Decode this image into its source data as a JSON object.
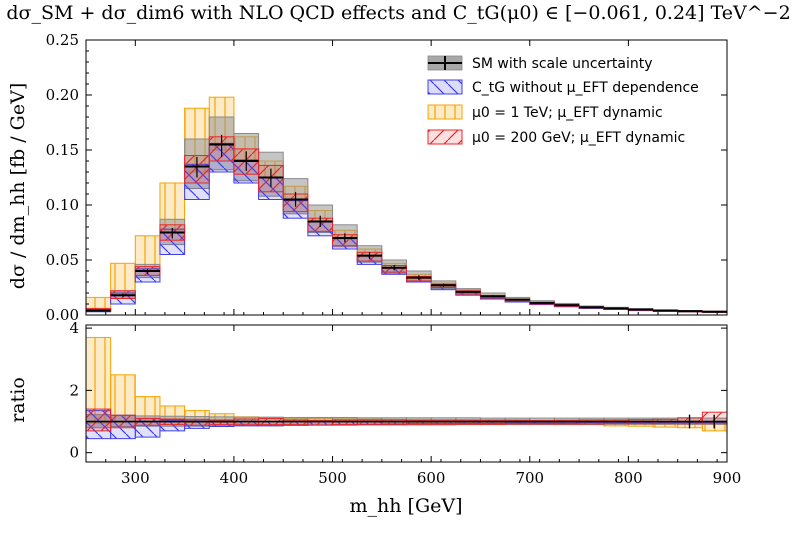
{
  "chart_data": {
    "type": "histogram",
    "title": "dσ_SM + dσ_dim6 with NLO QCD effects and C_tG(μ0) ∈ [−0.061, 0.24] TeV^−2",
    "xlabel": "m_hh [GeV]",
    "ylabel_main": "dσ / dm_hh   [fb / GeV]",
    "ylabel_ratio": "ratio",
    "xlim": [
      250,
      900
    ],
    "ylim_main": [
      0.0,
      0.25
    ],
    "ylim_ratio": [
      -0.3,
      4.1
    ],
    "xticks": [
      300,
      400,
      500,
      600,
      700,
      800,
      900
    ],
    "yticks_main": [
      "0.00",
      "0.05",
      "0.10",
      "0.15",
      "0.20",
      "0.25"
    ],
    "yticks_ratio": [
      "0",
      "2",
      "4"
    ],
    "bin_edges": [
      250,
      275,
      300,
      325,
      350,
      375,
      400,
      425,
      450,
      475,
      500,
      525,
      550,
      575,
      600,
      625,
      650,
      675,
      700,
      725,
      750,
      775,
      800,
      825,
      850,
      875,
      900
    ],
    "series": [
      {
        "name": "SM with scale uncertainty",
        "central": [
          0.004,
          0.018,
          0.04,
          0.075,
          0.135,
          0.155,
          0.14,
          0.125,
          0.105,
          0.085,
          0.07,
          0.054,
          0.043,
          0.034,
          0.027,
          0.021,
          0.017,
          0.014,
          0.011,
          0.009,
          0.007,
          0.006,
          0.005,
          0.004,
          0.0035,
          0.003
        ],
        "low": [
          0.003,
          0.015,
          0.034,
          0.064,
          0.115,
          0.132,
          0.122,
          0.108,
          0.092,
          0.075,
          0.062,
          0.048,
          0.038,
          0.03,
          0.024,
          0.019,
          0.015,
          0.012,
          0.0095,
          0.008,
          0.006,
          0.005,
          0.0043,
          0.0035,
          0.003,
          0.0026
        ],
        "high": [
          0.005,
          0.022,
          0.046,
          0.087,
          0.16,
          0.18,
          0.165,
          0.148,
          0.124,
          0.1,
          0.082,
          0.063,
          0.05,
          0.04,
          0.031,
          0.024,
          0.02,
          0.016,
          0.013,
          0.0105,
          0.0082,
          0.007,
          0.0058,
          0.0047,
          0.004,
          0.0035
        ]
      },
      {
        "name": "C_tG without μ_EFT dependence",
        "low": [
          0.003,
          0.01,
          0.03,
          0.055,
          0.105,
          0.13,
          0.12,
          0.105,
          0.088,
          0.072,
          0.06,
          0.046,
          0.037,
          0.03,
          0.023,
          0.018,
          0.0145,
          0.0118,
          0.0095,
          0.0075,
          0.006,
          0.005,
          0.004,
          0.0034,
          0.0029,
          0.0025
        ],
        "high": [
          0.005,
          0.02,
          0.042,
          0.078,
          0.137,
          0.156,
          0.141,
          0.125,
          0.104,
          0.085,
          0.07,
          0.054,
          0.043,
          0.034,
          0.027,
          0.021,
          0.017,
          0.014,
          0.011,
          0.009,
          0.007,
          0.006,
          0.005,
          0.004,
          0.0035,
          0.003
        ]
      },
      {
        "name": "μ0 = 1 TeV; μ_EFT dynamic",
        "low": [
          0.004,
          0.018,
          0.04,
          0.075,
          0.13,
          0.15,
          0.14,
          0.125,
          0.105,
          0.085,
          0.069,
          0.053,
          0.042,
          0.033,
          0.026,
          0.02,
          0.016,
          0.013,
          0.0105,
          0.008,
          0.0065,
          0.005,
          0.0042,
          0.0034,
          0.0028,
          0.0022
        ],
        "high": [
          0.016,
          0.047,
          0.072,
          0.12,
          0.188,
          0.198,
          0.162,
          0.14,
          0.117,
          0.095,
          0.077,
          0.06,
          0.047,
          0.037,
          0.029,
          0.023,
          0.018,
          0.0145,
          0.0115,
          0.0092,
          0.0072,
          0.006,
          0.0049,
          0.004,
          0.0033,
          0.0028
        ]
      },
      {
        "name": "μ0 = 200 GeV; μ_EFT dynamic",
        "low": [
          0.004,
          0.015,
          0.036,
          0.068,
          0.12,
          0.14,
          0.128,
          0.112,
          0.094,
          0.076,
          0.063,
          0.049,
          0.039,
          0.031,
          0.025,
          0.019,
          0.0155,
          0.0125,
          0.01,
          0.008,
          0.0064,
          0.0052,
          0.0043,
          0.0036,
          0.003,
          0.0026
        ],
        "high": [
          0.006,
          0.022,
          0.044,
          0.082,
          0.145,
          0.162,
          0.151,
          0.136,
          0.11,
          0.088,
          0.073,
          0.057,
          0.045,
          0.035,
          0.028,
          0.022,
          0.0175,
          0.0142,
          0.0113,
          0.0092,
          0.0073,
          0.0061,
          0.0051,
          0.0042,
          0.0037,
          0.0033
        ]
      }
    ],
    "ratio": {
      "sm": {
        "low": [
          0.8,
          0.84,
          0.85,
          0.85,
          0.85,
          0.86,
          0.87,
          0.87,
          0.88,
          0.88,
          0.88,
          0.89,
          0.89,
          0.89,
          0.89,
          0.9,
          0.9,
          0.9,
          0.9,
          0.9,
          0.9,
          0.91,
          0.91,
          0.91,
          0.91,
          0.91
        ],
        "high": [
          1.22,
          1.2,
          1.18,
          1.17,
          1.16,
          1.15,
          1.14,
          1.14,
          1.13,
          1.13,
          1.13,
          1.12,
          1.12,
          1.12,
          1.12,
          1.12,
          1.11,
          1.11,
          1.11,
          1.11,
          1.11,
          1.11,
          1.11,
          1.11,
          1.11,
          1.11
        ]
      },
      "ctg": {
        "low": [
          0.45,
          0.45,
          0.5,
          0.7,
          0.78,
          0.84,
          0.86,
          0.86,
          0.88,
          0.89,
          0.9,
          0.91,
          0.92,
          0.93,
          0.93,
          0.94,
          0.94,
          0.95,
          0.95,
          0.95,
          0.96,
          0.96,
          0.96,
          0.96,
          0.97,
          0.97
        ],
        "high": [
          1.35,
          1.2,
          1.1,
          1.05,
          1.02,
          1.01,
          1.01,
          1.0,
          1.0,
          1.0,
          1.0,
          1.0,
          1.0,
          1.0,
          1.0,
          1.0,
          1.0,
          1.0,
          1.0,
          1.0,
          1.0,
          1.0,
          1.0,
          1.0,
          1.0,
          1.0
        ]
      },
      "mu1tev": {
        "low": [
          0.95,
          0.98,
          0.99,
          1.0,
          0.97,
          0.97,
          1.0,
          1.0,
          1.0,
          1.0,
          0.99,
          0.98,
          0.98,
          0.97,
          0.96,
          0.96,
          0.95,
          0.94,
          0.93,
          0.9,
          0.9,
          0.86,
          0.85,
          0.82,
          0.8,
          0.7
        ],
        "high": [
          3.7,
          2.5,
          1.8,
          1.5,
          1.35,
          1.25,
          1.15,
          1.12,
          1.1,
          1.1,
          1.09,
          1.08,
          1.07,
          1.07,
          1.06,
          1.06,
          1.05,
          1.05,
          1.04,
          1.04,
          1.03,
          1.03,
          1.02,
          1.02,
          1.02,
          1.01
        ]
      },
      "mu200": {
        "low": [
          0.7,
          0.8,
          0.88,
          0.9,
          0.88,
          0.9,
          0.91,
          0.9,
          0.9,
          0.89,
          0.9,
          0.9,
          0.9,
          0.91,
          0.91,
          0.91,
          0.91,
          0.92,
          0.92,
          0.92,
          0.92,
          0.93,
          0.93,
          0.93,
          0.93,
          0.93
        ],
        "high": [
          1.4,
          1.2,
          1.1,
          1.08,
          1.07,
          1.05,
          1.08,
          1.1,
          1.05,
          1.03,
          1.05,
          1.05,
          1.05,
          1.04,
          1.04,
          1.04,
          1.04,
          1.04,
          1.03,
          1.04,
          1.05,
          1.05,
          1.06,
          1.07,
          1.12,
          1.3
        ]
      }
    },
    "colors": {
      "sm_fill": "#a8a8a8",
      "sm_line": "#000000",
      "ctg": "#4040e8",
      "mu1tev": "#f5a300",
      "mu200": "#e8282a"
    },
    "legend": [
      {
        "key": "sm",
        "label": "SM with scale uncertainty"
      },
      {
        "key": "ctg",
        "label": "C_tG without μ_EFT dependence"
      },
      {
        "key": "mu1tev",
        "label": "μ0 = 1 TeV; μ_EFT dynamic"
      },
      {
        "key": "mu200",
        "label": "μ0 = 200 GeV; μ_EFT dynamic"
      }
    ],
    "legend_position": "top-right"
  }
}
